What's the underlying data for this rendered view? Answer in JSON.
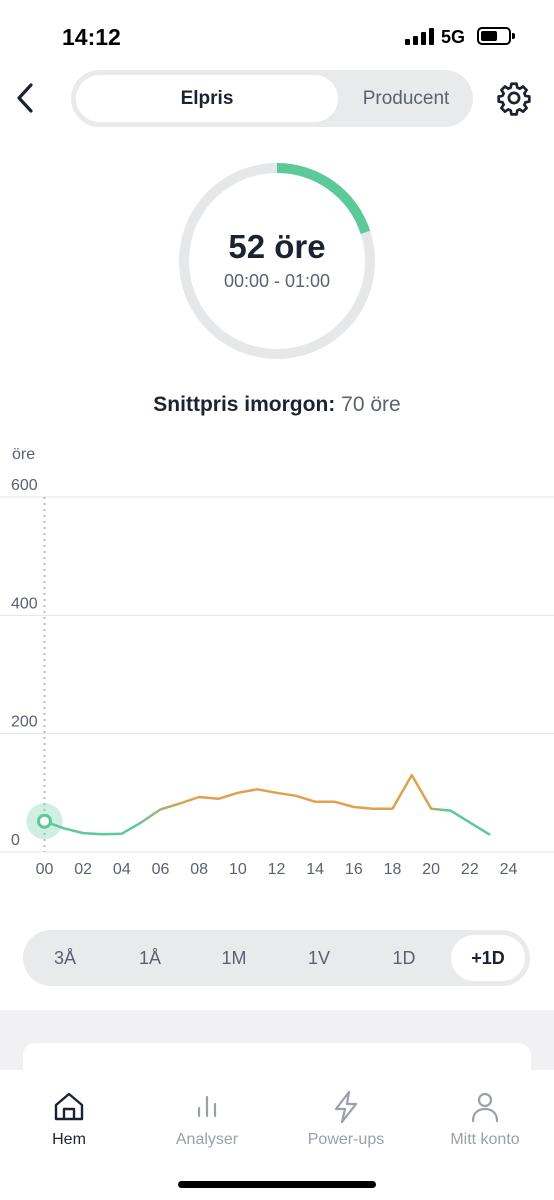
{
  "status_bar": {
    "time": "14:12",
    "network": "5G",
    "battery_level": 0.6
  },
  "header": {
    "back_icon": "chevron-left-icon",
    "tabs": [
      {
        "label": "Elpris",
        "active": true
      },
      {
        "label": "Producent",
        "active": false
      }
    ],
    "settings_icon": "gear-icon"
  },
  "gauge": {
    "price": "52 öre",
    "time_range": "00:00 - 01:00",
    "fill_fraction": 0.2
  },
  "average": {
    "label": "Snittpris imorgon:",
    "value": "70 öre"
  },
  "chart_data": {
    "type": "line",
    "ylabel": "öre",
    "ylim": [
      0,
      600
    ],
    "xlim": [
      0,
      24
    ],
    "y_ticks": [
      "0",
      "200",
      "400",
      "600"
    ],
    "x_ticks": [
      "00",
      "02",
      "04",
      "06",
      "08",
      "10",
      "12",
      "14",
      "16",
      "18",
      "20",
      "22",
      "24"
    ],
    "x": [
      0,
      1,
      2,
      3,
      4,
      5,
      6,
      7,
      8,
      9,
      10,
      11,
      12,
      13,
      14,
      15,
      16,
      17,
      18,
      19,
      20,
      21,
      22,
      23
    ],
    "values": [
      52,
      40,
      32,
      30,
      31,
      50,
      72,
      82,
      93,
      90,
      100,
      106,
      100,
      95,
      85,
      85,
      76,
      73,
      73,
      130,
      73,
      70,
      50,
      30
    ],
    "current_hour": 0,
    "colors": {
      "low": "#5cc99a",
      "high": "#dfa150",
      "marker": "#5cc99a"
    }
  },
  "range_tabs": [
    {
      "label": "3Å",
      "active": false
    },
    {
      "label": "1Å",
      "active": false
    },
    {
      "label": "1M",
      "active": false
    },
    {
      "label": "1V",
      "active": false
    },
    {
      "label": "1D",
      "active": false
    },
    {
      "label": "+1D",
      "active": true
    }
  ],
  "bottom_nav": [
    {
      "label": "Hem",
      "icon": "home-icon",
      "active": true
    },
    {
      "label": "Analyser",
      "icon": "bar-chart-icon",
      "active": false
    },
    {
      "label": "Power-ups",
      "icon": "lightning-icon",
      "active": false
    },
    {
      "label": "Mitt konto",
      "icon": "person-icon",
      "active": false
    }
  ]
}
